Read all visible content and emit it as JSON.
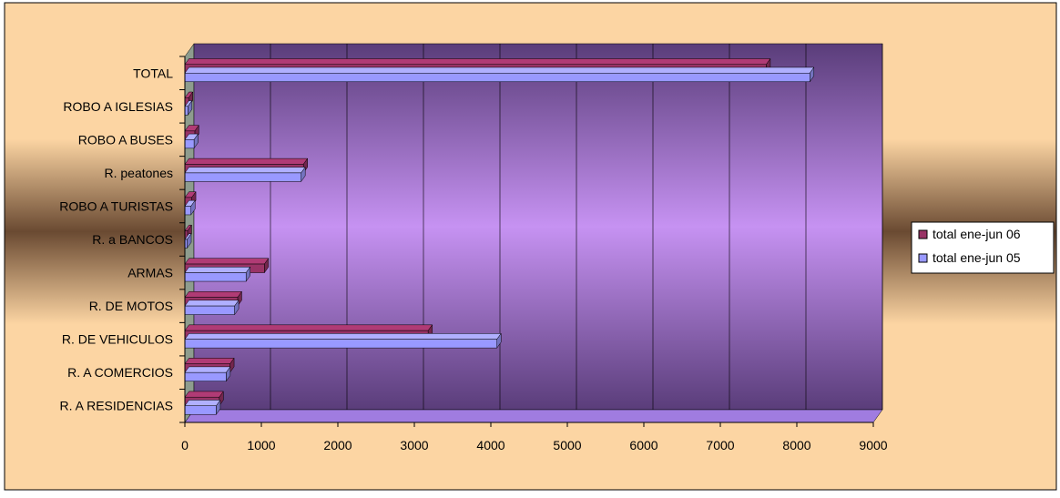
{
  "chart_data": {
    "type": "bar",
    "orientation": "horizontal",
    "three_d": true,
    "categories": [
      "TOTAL",
      "ROBO A IGLESIAS",
      "ROBO A BUSES",
      "R. peatones",
      "ROBO A TURISTAS",
      "R. a  BANCOS",
      "ARMAS",
      "R. DE MOTOS",
      "R. DE VEHICULOS",
      "R. A COMERCIOS",
      "R. A RESIDENCIAS"
    ],
    "series": [
      {
        "name": "total ene-jun 06",
        "color": "#993366",
        "values": [
          7600,
          50,
          130,
          1550,
          90,
          35,
          1040,
          690,
          3180,
          590,
          450
        ]
      },
      {
        "name": "total ene-jun 05",
        "color": "#9999ff",
        "values": [
          8170,
          40,
          120,
          1520,
          80,
          30,
          800,
          650,
          4080,
          540,
          410
        ]
      }
    ],
    "x_ticks": [
      "0",
      "1000",
      "2000",
      "3000",
      "4000",
      "5000",
      "6000",
      "7000",
      "8000",
      "9000"
    ],
    "xlim": [
      0,
      9000
    ],
    "grid": true,
    "legend_position": "right",
    "colors": {
      "background": "#fcd5a3",
      "plot_top": "#5a3d7a",
      "plot_middle": "#c692f2",
      "plot_bottom": "#5a3d7a",
      "floor": "#a07ce0",
      "side_wall": "#8e9c8e",
      "outer_gradient_dark": "#6a4a32"
    }
  }
}
